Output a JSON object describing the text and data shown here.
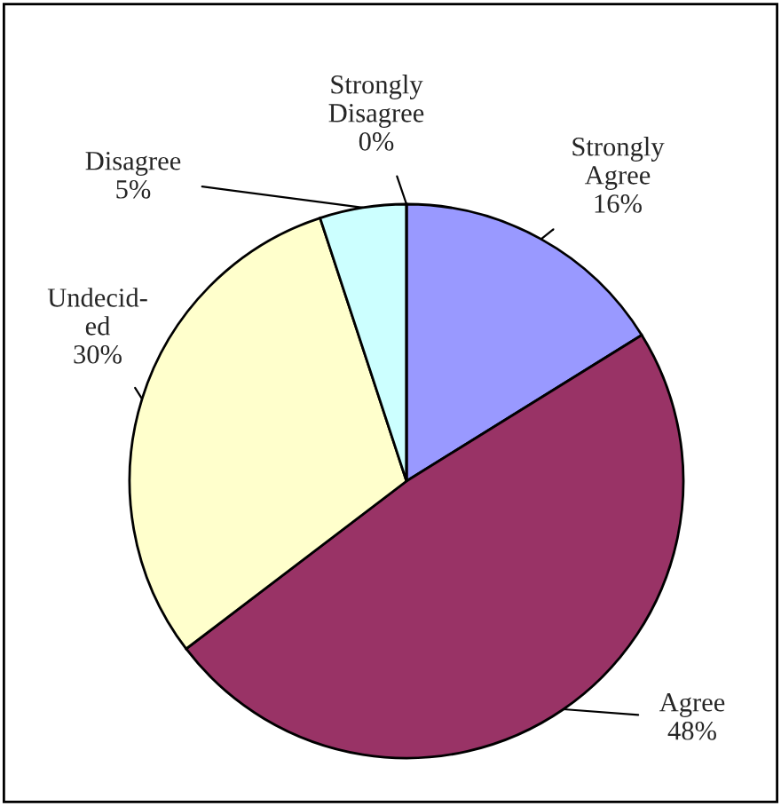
{
  "chart_data": {
    "type": "pie",
    "categories": [
      "Strongly\nAgree",
      "Agree",
      "Undecid-\ned",
      "Disagree",
      "Strongly\nDisagree"
    ],
    "values": [
      16,
      48,
      30,
      5,
      0
    ],
    "value_labels": [
      "16%",
      "48%",
      "30%",
      "5%",
      "0%"
    ],
    "colors": [
      "#9999ff",
      "#993366",
      "#ffffcc",
      "#ccffff",
      "#660066"
    ]
  }
}
